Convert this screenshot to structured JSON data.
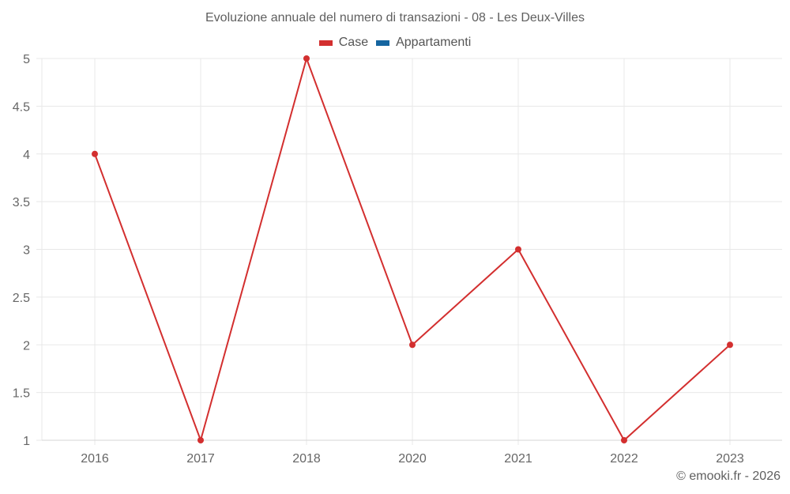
{
  "chart_data": {
    "type": "line",
    "title": "Evoluzione annuale del numero di transazioni - 08 - Les Deux-Villes",
    "categories": [
      "2016",
      "2017",
      "2018",
      "2020",
      "2021",
      "2022",
      "2023"
    ],
    "series": [
      {
        "name": "Case",
        "color": "#d32f2f",
        "values": [
          4,
          1,
          5,
          2,
          3,
          1,
          2
        ]
      },
      {
        "name": "Appartamenti",
        "color": "#1565a0",
        "values": []
      }
    ],
    "xlabel": "",
    "ylabel": "",
    "ylim": [
      1,
      5
    ],
    "yticks": [
      "1",
      "1.5",
      "2",
      "2.5",
      "3",
      "3.5",
      "4",
      "4.5",
      "5"
    ],
    "grid": true,
    "legend_position": "top"
  },
  "legend": [
    {
      "label": "Case",
      "color": "#d32f2f"
    },
    {
      "label": "Appartamenti",
      "color": "#1565a0"
    }
  ],
  "credit": "© emooki.fr - 2026"
}
